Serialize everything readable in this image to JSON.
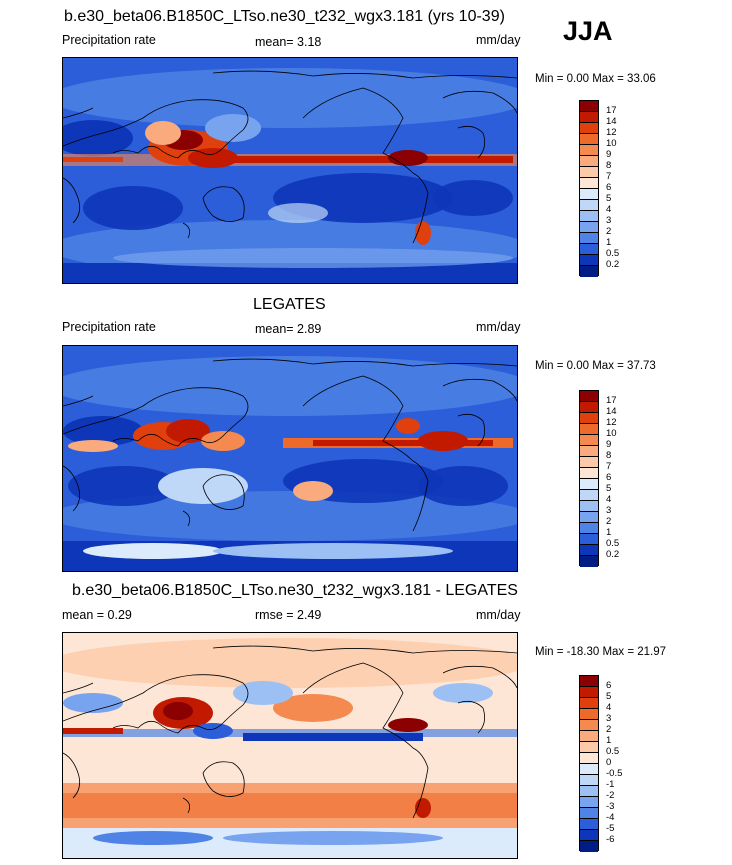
{
  "season": "JJA",
  "panels": [
    {
      "title": "b.e30_beta06.B1850C_LTso.ne30_t232_wgx3.181 (yrs 10-39)",
      "left_label": "Precipitation rate",
      "center_label": "mean=   3.18",
      "right_label": "mm/day",
      "minmax": "Min =   0.00 Max =  33.06",
      "colorbar": {
        "labels": [
          "17",
          "14",
          "12",
          "10",
          "9",
          "8",
          "7",
          "6",
          "5",
          "4",
          "3",
          "2",
          "1",
          "0.5",
          "0.2"
        ],
        "colors": [
          "#8b0000",
          "#c21a00",
          "#e0400e",
          "#ee6a2a",
          "#f58a50",
          "#f9ab7e",
          "#fccaa8",
          "#fde6d6",
          "#dcebfb",
          "#bfd8f8",
          "#9cc0f3",
          "#78a3ee",
          "#4f83e6",
          "#2b5ed8",
          "#0d36b8",
          "#001d86"
        ]
      }
    },
    {
      "title": "LEGATES",
      "left_label": "Precipitation rate",
      "center_label": "mean=   2.89",
      "right_label": "mm/day",
      "minmax": "Min =   0.00 Max =  37.73",
      "colorbar": {
        "labels": [
          "17",
          "14",
          "12",
          "10",
          "9",
          "8",
          "7",
          "6",
          "5",
          "4",
          "3",
          "2",
          "1",
          "0.5",
          "0.2"
        ],
        "colors": [
          "#8b0000",
          "#c21a00",
          "#e0400e",
          "#ee6a2a",
          "#f58a50",
          "#f9ab7e",
          "#fccaa8",
          "#fde6d6",
          "#dcebfb",
          "#bfd8f8",
          "#9cc0f3",
          "#78a3ee",
          "#4f83e6",
          "#2b5ed8",
          "#0d36b8",
          "#001d86"
        ]
      }
    },
    {
      "title": "b.e30_beta06.B1850C_LTso.ne30_t232_wgx3.181 - LEGATES",
      "left_label": "mean =   0.29",
      "center_label": "rmse =   2.49",
      "right_label": "mm/day",
      "minmax": "Min = -18.30 Max =  21.97",
      "colorbar": {
        "labels": [
          "6",
          "5",
          "4",
          "3",
          "2",
          "1",
          "0.5",
          "0",
          "-0.5",
          "-1",
          "-2",
          "-3",
          "-4",
          "-5",
          "-6"
        ],
        "colors": [
          "#8b0000",
          "#c21a00",
          "#e0400e",
          "#ee6a2a",
          "#f58a50",
          "#f9ab7e",
          "#fccaa8",
          "#fde6d6",
          "#dcebfb",
          "#bfd8f8",
          "#9cc0f3",
          "#78a3ee",
          "#4f83e6",
          "#2b5ed8",
          "#0d36b8",
          "#001d86"
        ]
      }
    }
  ]
}
